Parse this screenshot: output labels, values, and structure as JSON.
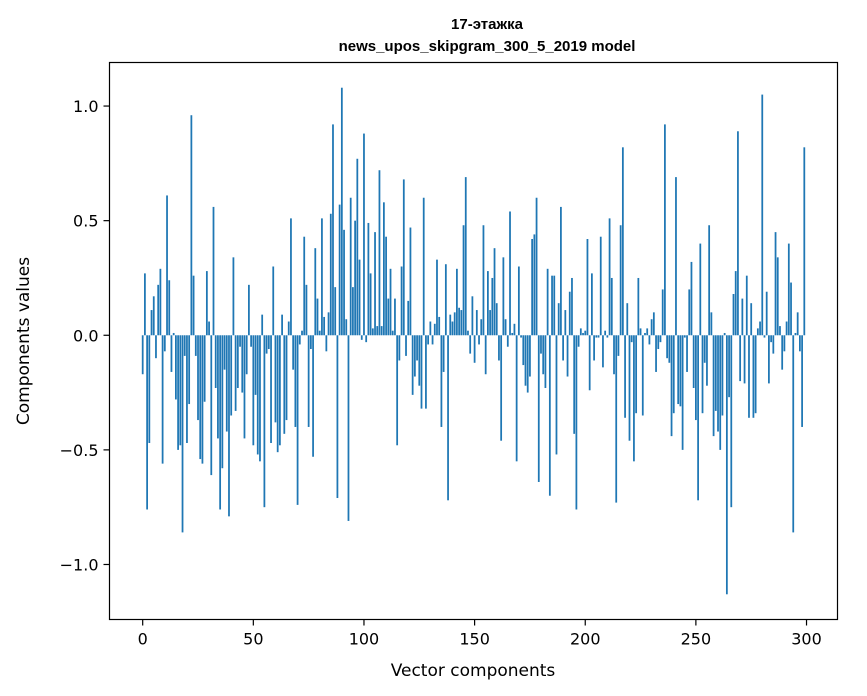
{
  "chart_data": {
    "type": "bar",
    "title": "17-этажка",
    "subtitle": "news_upos_skipgram_300_5_2019 model",
    "xlabel": "Vector components",
    "ylabel": "Components values",
    "xlim": [
      -15,
      314
    ],
    "ylim": [
      -1.24,
      1.19
    ],
    "xticks": [
      0,
      50,
      100,
      150,
      200,
      250,
      300
    ],
    "xtick_labels": [
      "0",
      "50",
      "100",
      "150",
      "200",
      "250",
      "300"
    ],
    "yticks": [
      1.0,
      0.5,
      0.0,
      -0.5,
      -1.0
    ],
    "ytick_labels": [
      "1.0",
      "0.5",
      "0.0",
      "−0.5",
      "−1.0"
    ],
    "grid": false,
    "bar_color": "#1f77b4",
    "x_start": 0,
    "values": [
      -0.17,
      0.27,
      -0.76,
      -0.47,
      0.11,
      0.17,
      -0.1,
      0.22,
      0.29,
      -0.56,
      -0.07,
      0.61,
      0.24,
      -0.16,
      0.01,
      -0.28,
      -0.5,
      -0.48,
      -0.86,
      -0.09,
      -0.47,
      -0.3,
      0.96,
      0.26,
      -0.09,
      -0.37,
      -0.54,
      -0.56,
      -0.29,
      0.28,
      0.06,
      -0.61,
      0.56,
      -0.23,
      -0.45,
      -0.76,
      -0.58,
      -0.15,
      -0.42,
      -0.79,
      -0.35,
      0.34,
      -0.33,
      -0.23,
      -0.05,
      -0.25,
      -0.45,
      -0.17,
      0.22,
      -0.05,
      -0.48,
      -0.26,
      -0.52,
      -0.55,
      0.09,
      -0.75,
      -0.08,
      -0.06,
      -0.47,
      0.3,
      -0.38,
      -0.51,
      -0.48,
      0.09,
      -0.43,
      -0.37,
      0.06,
      0.51,
      -0.15,
      -0.4,
      -0.74,
      -0.04,
      0.02,
      0.43,
      0.22,
      -0.4,
      -0.06,
      -0.53,
      0.38,
      0.16,
      0.02,
      0.51,
      0.08,
      -0.07,
      0.1,
      0.53,
      0.92,
      0.21,
      -0.71,
      0.57,
      1.08,
      0.46,
      0.07,
      -0.81,
      0.6,
      0.21,
      0.5,
      0.77,
      0.33,
      -0.02,
      0.88,
      -0.03,
      0.49,
      0.27,
      0.03,
      0.45,
      0.04,
      0.72,
      0.04,
      0.58,
      0.43,
      0.16,
      0.29,
      0.02,
      0.16,
      -0.48,
      -0.11,
      0.3,
      0.68,
      -0.09,
      0.15,
      0.47,
      -0.26,
      -0.18,
      -0.11,
      -0.22,
      -0.32,
      0.6,
      -0.32,
      -0.04,
      0.06,
      -0.04,
      0.05,
      0.33,
      0.08,
      -0.4,
      -0.16,
      0.31,
      -0.72,
      0.09,
      0.06,
      0.1,
      0.29,
      0.12,
      0.11,
      0.48,
      0.69,
      0.02,
      -0.08,
      0.17,
      -0.12,
      0.11,
      -0.04,
      0.07,
      0.48,
      -0.17,
      0.28,
      0.11,
      0.25,
      0.38,
      0.14,
      -0.11,
      -0.46,
      0.34,
      0.07,
      -0.05,
      0.54,
      0.01,
      0.05,
      -0.55,
      0.3,
      -0.01,
      -0.13,
      -0.22,
      -0.25,
      -0.18,
      0.42,
      0.44,
      0.6,
      -0.64,
      -0.08,
      -0.17,
      -0.23,
      0.29,
      -0.7,
      0.26,
      0.26,
      -0.52,
      0.14,
      0.56,
      -0.11,
      0.11,
      -0.18,
      0.19,
      0.25,
      -0.43,
      -0.76,
      -0.05,
      0.03,
      0.01,
      0.02,
      0.42,
      -0.24,
      0.27,
      -0.11,
      -0.01,
      -0.01,
      0.43,
      -0.14,
      0.02,
      -0.01,
      0.51,
      0.25,
      -0.17,
      -0.73,
      -0.09,
      0.48,
      0.82,
      -0.36,
      0.14,
      -0.46,
      -0.03,
      -0.55,
      -0.34,
      0.25,
      0.03,
      -0.35,
      0.01,
      0.03,
      -0.04,
      0.07,
      0.1,
      -0.16,
      -0.06,
      -0.03,
      0.2,
      0.92,
      -0.1,
      -0.12,
      -0.44,
      -0.34,
      0.69,
      -0.3,
      -0.31,
      -0.5,
      -0.01,
      -0.16,
      0.2,
      0.32,
      -0.23,
      -0.37,
      -0.72,
      0.4,
      -0.34,
      -0.12,
      -0.22,
      0.48,
      0.1,
      -0.44,
      -0.33,
      -0.42,
      -0.5,
      -0.35,
      0.01,
      -1.13,
      -0.27,
      -0.75,
      0.18,
      0.28,
      0.89,
      -0.2,
      0.16,
      -0.21,
      0.26,
      -0.36,
      0.14,
      -0.36,
      -0.34,
      0.03,
      0.06,
      1.05,
      -0.01,
      0.19,
      -0.21,
      -0.03,
      -0.08,
      0.45,
      0.34,
      0.04,
      -0.15,
      -0.07,
      0.06,
      0.4,
      0.23,
      -0.86,
      0.01,
      0.1,
      -0.07,
      -0.4,
      0.82
    ]
  }
}
